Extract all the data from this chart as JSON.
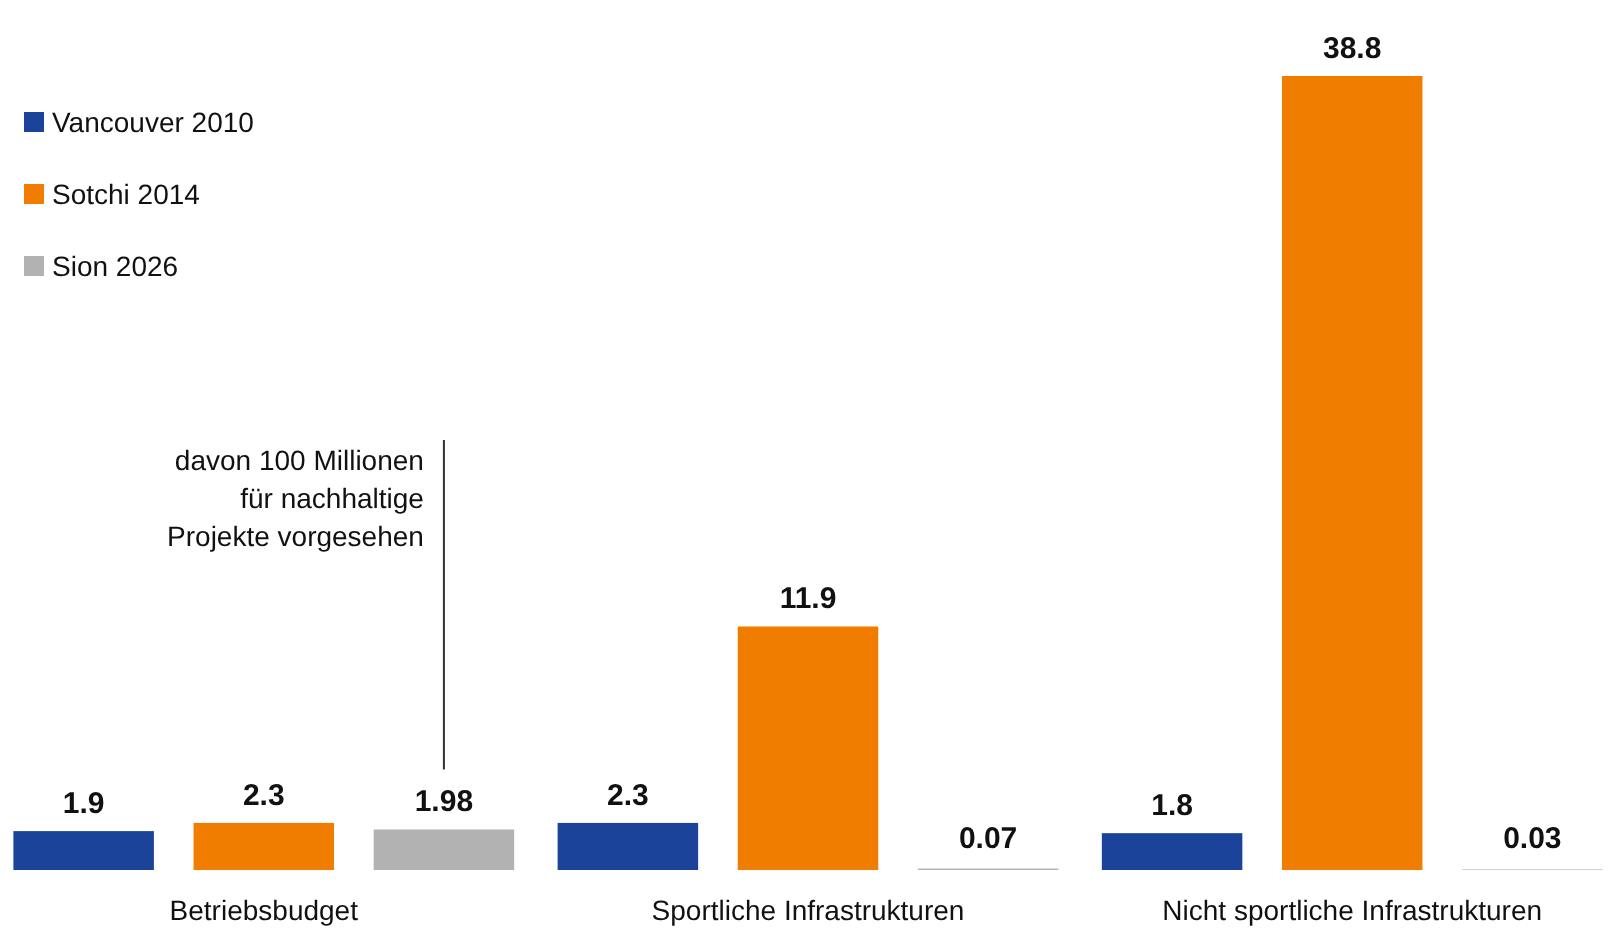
{
  "chart_data": {
    "type": "bar",
    "categories": [
      "Betriebsbudget",
      "Sportliche Infrastrukturen",
      "Nicht sportliche Infrastrukturen"
    ],
    "series": [
      {
        "name": "Vancouver 2010",
        "color": "#1a4399",
        "values": [
          1.9,
          2.3,
          1.8
        ]
      },
      {
        "name": "Sotchi 2014",
        "color": "#f07d00",
        "values": [
          2.3,
          11.9,
          38.8
        ]
      },
      {
        "name": "Sion 2026",
        "color": "#b2b2b2",
        "values": [
          1.98,
          0.07,
          0.03
        ]
      }
    ],
    "data_labels": true,
    "legend": "top left",
    "grid": false,
    "annotations": [
      "davon 100 Millionen\nfür nachhaltige\nProjekte vorgesehen"
    ]
  }
}
